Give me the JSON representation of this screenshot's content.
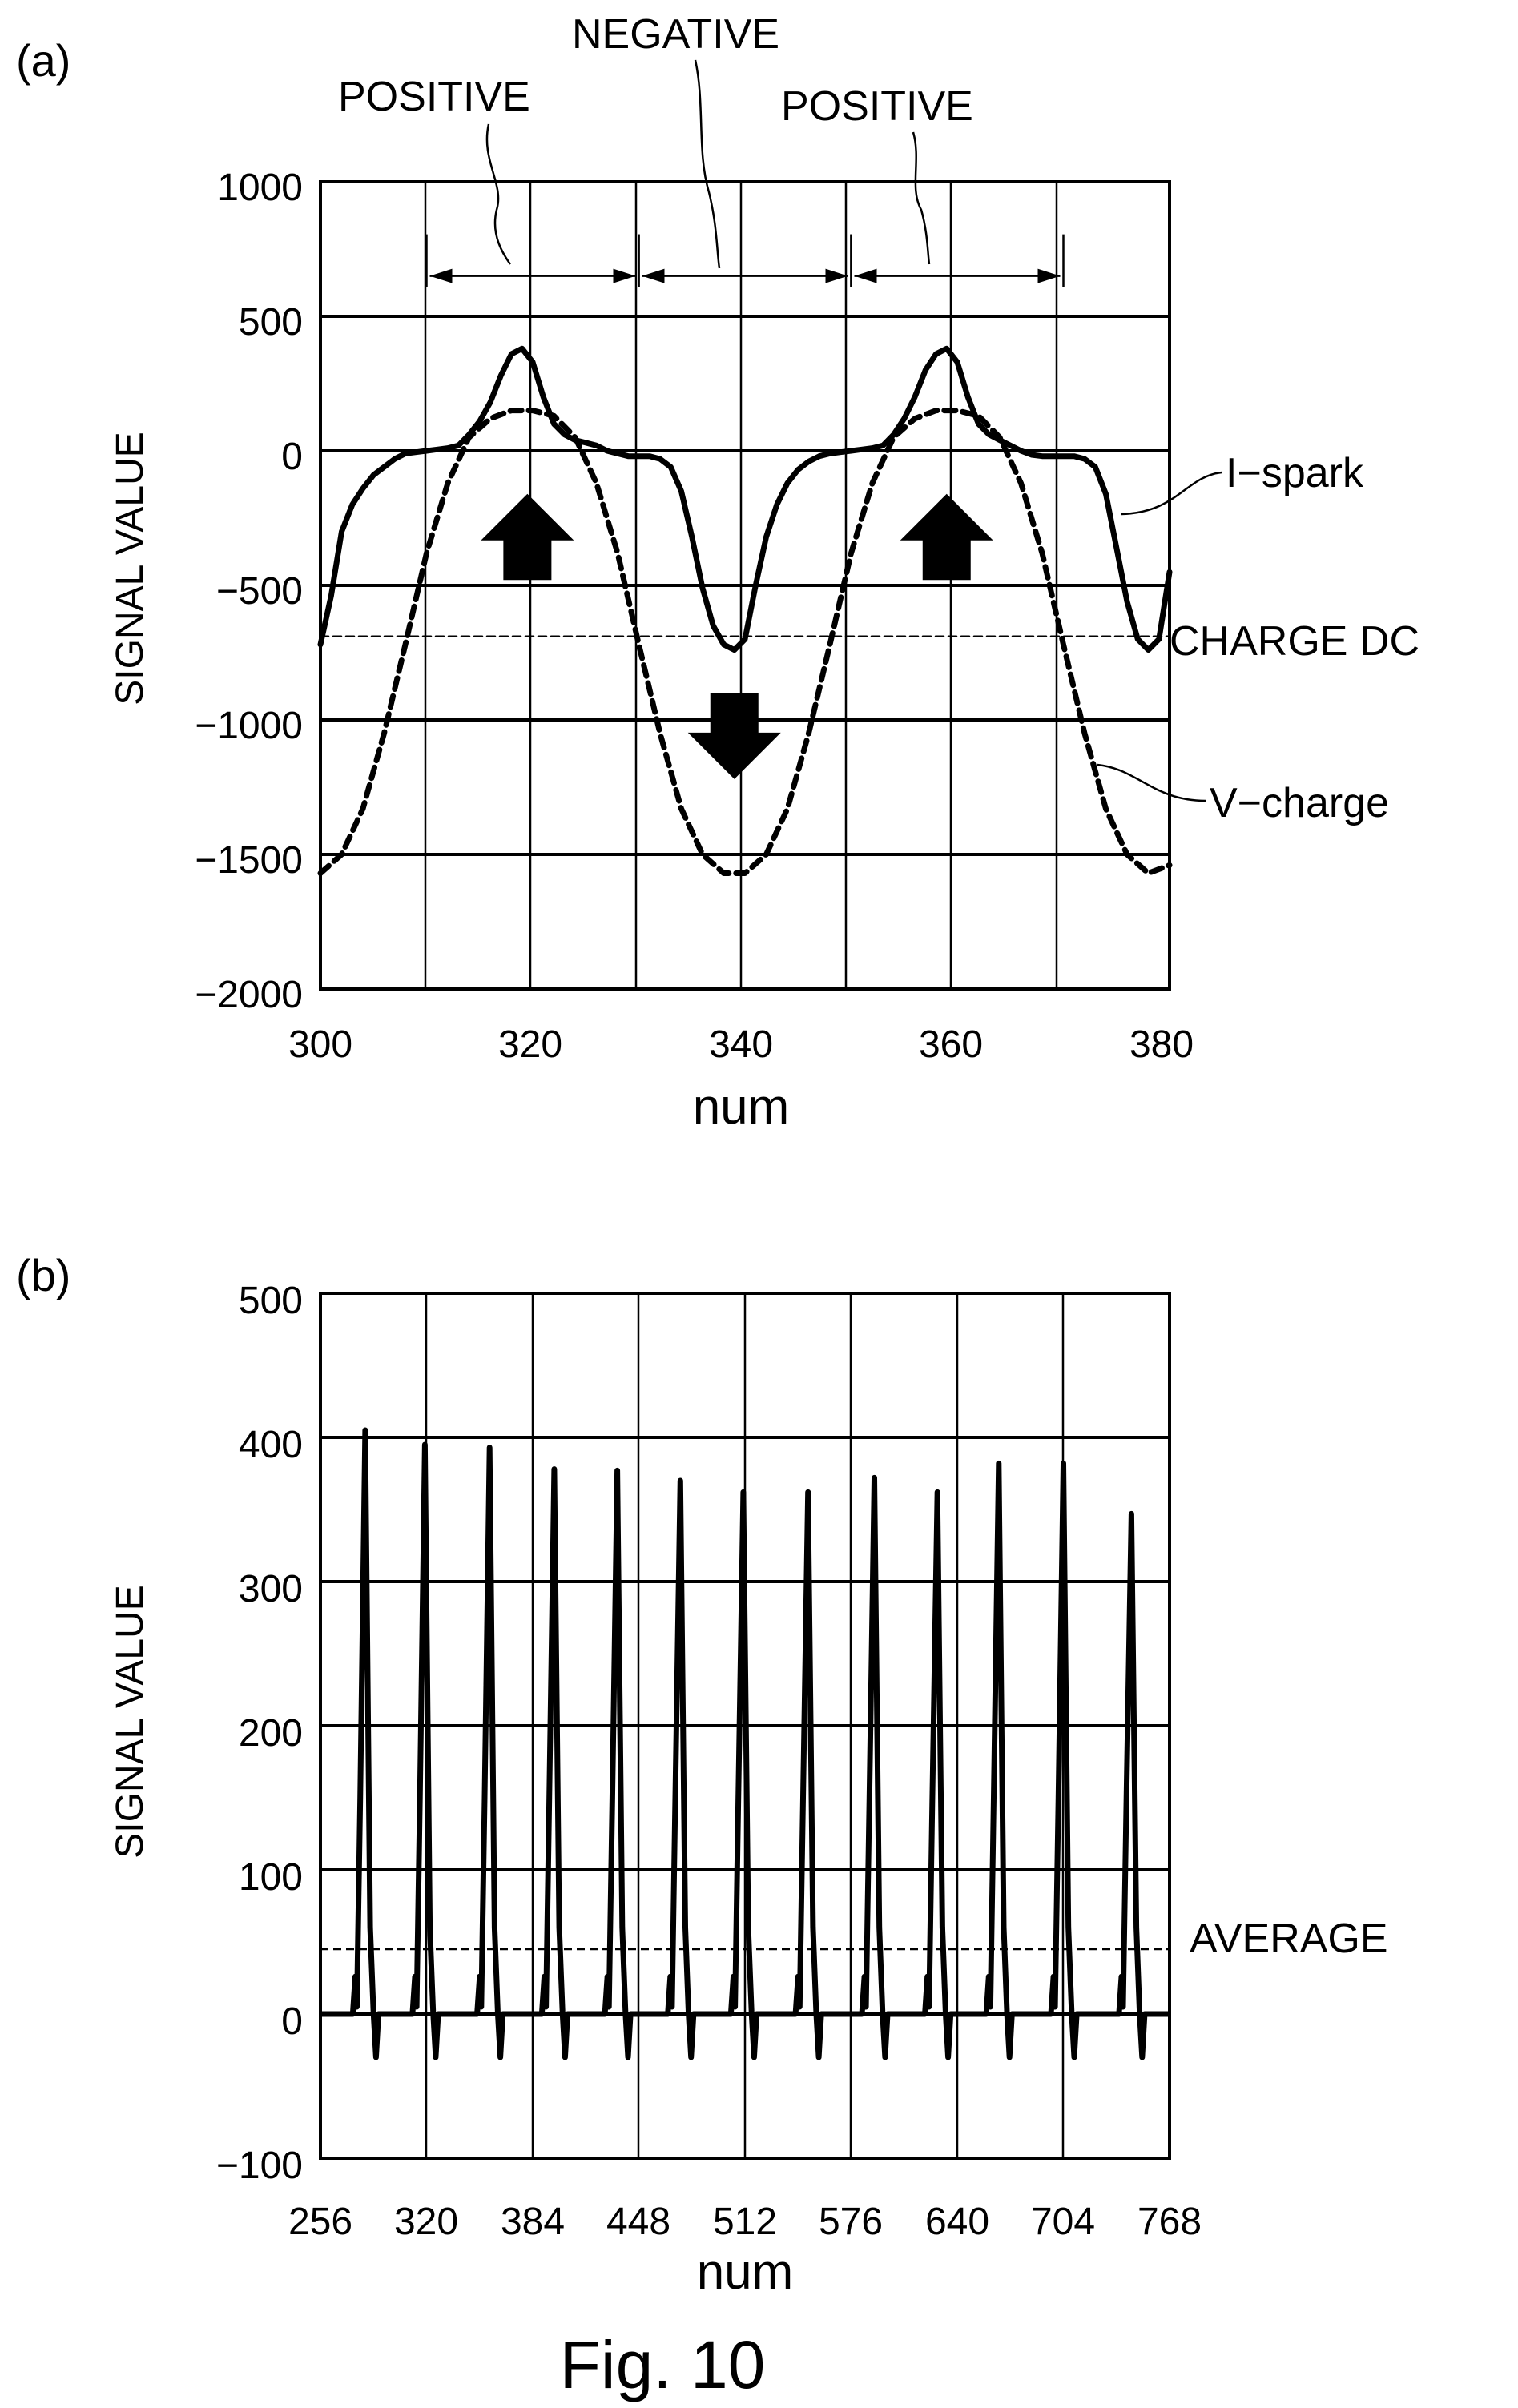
{
  "figure": {
    "caption": "Fig. 10"
  },
  "chart_data": [
    {
      "panel": "(a)",
      "type": "line",
      "xlabel": "num",
      "ylabel": "SIGNAL VALUE",
      "xlim": [
        300,
        380
      ],
      "ylim": [
        -2000,
        1000
      ],
      "xticks": [
        300,
        320,
        340,
        360,
        380
      ],
      "yticks": [
        1000,
        500,
        0,
        -500,
        -1000,
        -1500,
        -2000
      ],
      "grid": true,
      "series": [
        {
          "name": "I-spark",
          "style": "solid",
          "x": [
            300,
            301,
            302,
            303,
            304,
            305,
            306,
            307,
            308,
            309,
            310,
            311,
            312,
            313,
            314,
            315,
            316,
            317,
            318,
            319,
            320,
            321,
            322,
            323,
            324,
            325,
            326,
            327,
            328,
            329,
            330,
            331,
            332,
            333,
            334,
            335,
            336,
            337,
            338,
            339,
            340,
            341,
            342,
            343,
            344,
            345,
            346,
            347,
            348,
            349,
            350,
            351,
            352,
            353,
            354,
            355,
            356,
            357,
            358,
            359,
            360,
            361,
            362,
            363,
            364,
            365,
            366,
            367,
            368,
            369,
            370,
            371,
            372,
            373,
            374,
            375,
            376,
            377,
            378,
            379,
            380
          ],
          "y": [
            -720,
            -540,
            -300,
            -200,
            -140,
            -90,
            -60,
            -30,
            -10,
            -5,
            0,
            5,
            10,
            20,
            60,
            110,
            180,
            280,
            360,
            380,
            330,
            200,
            100,
            60,
            40,
            30,
            20,
            0,
            -10,
            -20,
            -20,
            -20,
            -30,
            -60,
            -150,
            -320,
            -510,
            -650,
            -720,
            -740,
            -700,
            -500,
            -320,
            -200,
            -120,
            -70,
            -40,
            -20,
            -10,
            -5,
            0,
            5,
            10,
            20,
            60,
            120,
            200,
            300,
            360,
            380,
            330,
            200,
            100,
            60,
            40,
            20,
            0,
            -15,
            -20,
            -20,
            -20,
            -20,
            -30,
            -60,
            -160,
            -360,
            -560,
            -700,
            -740,
            -700,
            -450
          ]
        },
        {
          "name": "V-charge",
          "style": "dashed",
          "x": [
            300,
            302,
            304,
            306,
            308,
            310,
            312,
            314,
            316,
            318,
            320,
            322,
            324,
            326,
            328,
            330,
            332,
            334,
            336,
            338,
            340,
            342,
            344,
            346,
            348,
            350,
            352,
            354,
            356,
            358,
            360,
            362,
            364,
            366,
            368,
            370,
            372,
            374,
            376,
            378,
            380
          ],
          "y": [
            -1570,
            -1500,
            -1330,
            -1050,
            -720,
            -380,
            -120,
            50,
            120,
            150,
            150,
            130,
            50,
            -120,
            -380,
            -720,
            -1050,
            -1330,
            -1500,
            -1570,
            -1570,
            -1500,
            -1330,
            -1050,
            -720,
            -380,
            -120,
            50,
            120,
            150,
            150,
            130,
            50,
            -120,
            -380,
            -720,
            -1050,
            -1330,
            -1500,
            -1570,
            -1540
          ]
        },
        {
          "name": "CHARGE DC",
          "style": "thin-dashed",
          "x": [
            300,
            380
          ],
          "y": [
            -690,
            -690
          ]
        }
      ],
      "annotations": {
        "spans": [
          {
            "label": "POSITIVE",
            "from": 310,
            "to": 330
          },
          {
            "label": "NEGATIVE",
            "from": 330,
            "to": 350
          },
          {
            "label": "POSITIVE",
            "from": 350,
            "to": 370
          }
        ],
        "span_y": 650,
        "arrows": [
          {
            "direction": "up",
            "x": 319.5,
            "y_bottom": -480,
            "y_top": -160
          },
          {
            "direction": "down",
            "x": 339,
            "y_top": -900,
            "y_bottom": -1220
          },
          {
            "direction": "up",
            "x": 359,
            "y_bottom": -480,
            "y_top": -160
          }
        ]
      }
    },
    {
      "panel": "(b)",
      "type": "line",
      "xlabel": "num",
      "ylabel": "SIGNAL VALUE",
      "xlim": [
        256,
        768
      ],
      "ylim": [
        -100,
        500
      ],
      "xticks": [
        256,
        320,
        384,
        448,
        512,
        576,
        640,
        704,
        768
      ],
      "yticks": [
        500,
        400,
        300,
        200,
        100,
        0,
        -100
      ],
      "grid": true,
      "pulse_peaks": [
        {
          "x": 283,
          "y": 405
        },
        {
          "x": 319,
          "y": 395
        },
        {
          "x": 358,
          "y": 393
        },
        {
          "x": 397,
          "y": 378
        },
        {
          "x": 435,
          "y": 377
        },
        {
          "x": 473,
          "y": 370
        },
        {
          "x": 511,
          "y": 362
        },
        {
          "x": 550,
          "y": 362
        },
        {
          "x": 590,
          "y": 372
        },
        {
          "x": 628,
          "y": 362
        },
        {
          "x": 665,
          "y": 382
        },
        {
          "x": 704,
          "y": 382
        },
        {
          "x": 745,
          "y": 347
        }
      ],
      "series": [
        {
          "name": "I-spark",
          "style": "solid"
        },
        {
          "name": "AVERAGE",
          "style": "thin-dashed",
          "x": [
            256,
            768
          ],
          "y": [
            45,
            45
          ]
        }
      ]
    }
  ],
  "labels": {
    "a": {
      "panel": "(a)",
      "ylabel": "SIGNAL VALUE",
      "xlabel": "num",
      "negative": "NEGATIVE",
      "positive1": "POSITIVE",
      "positive2": "POSITIVE",
      "ispark": "I−spark",
      "chargedc": "CHARGE DC",
      "vcharge": "V−charge"
    },
    "b": {
      "panel": "(b)",
      "ylabel": "SIGNAL VALUE",
      "xlabel": "num",
      "average": "AVERAGE"
    }
  },
  "ticks": {
    "a_y": [
      "1000",
      "500",
      "0",
      "−500",
      "−1000",
      "−1500",
      "−2000"
    ],
    "a_x": [
      "300",
      "320",
      "340",
      "360",
      "380"
    ],
    "b_y": [
      "500",
      "400",
      "300",
      "200",
      "100",
      "0",
      "−100"
    ],
    "b_x": [
      "256",
      "320",
      "384",
      "448",
      "512",
      "576",
      "640",
      "704",
      "768"
    ]
  }
}
